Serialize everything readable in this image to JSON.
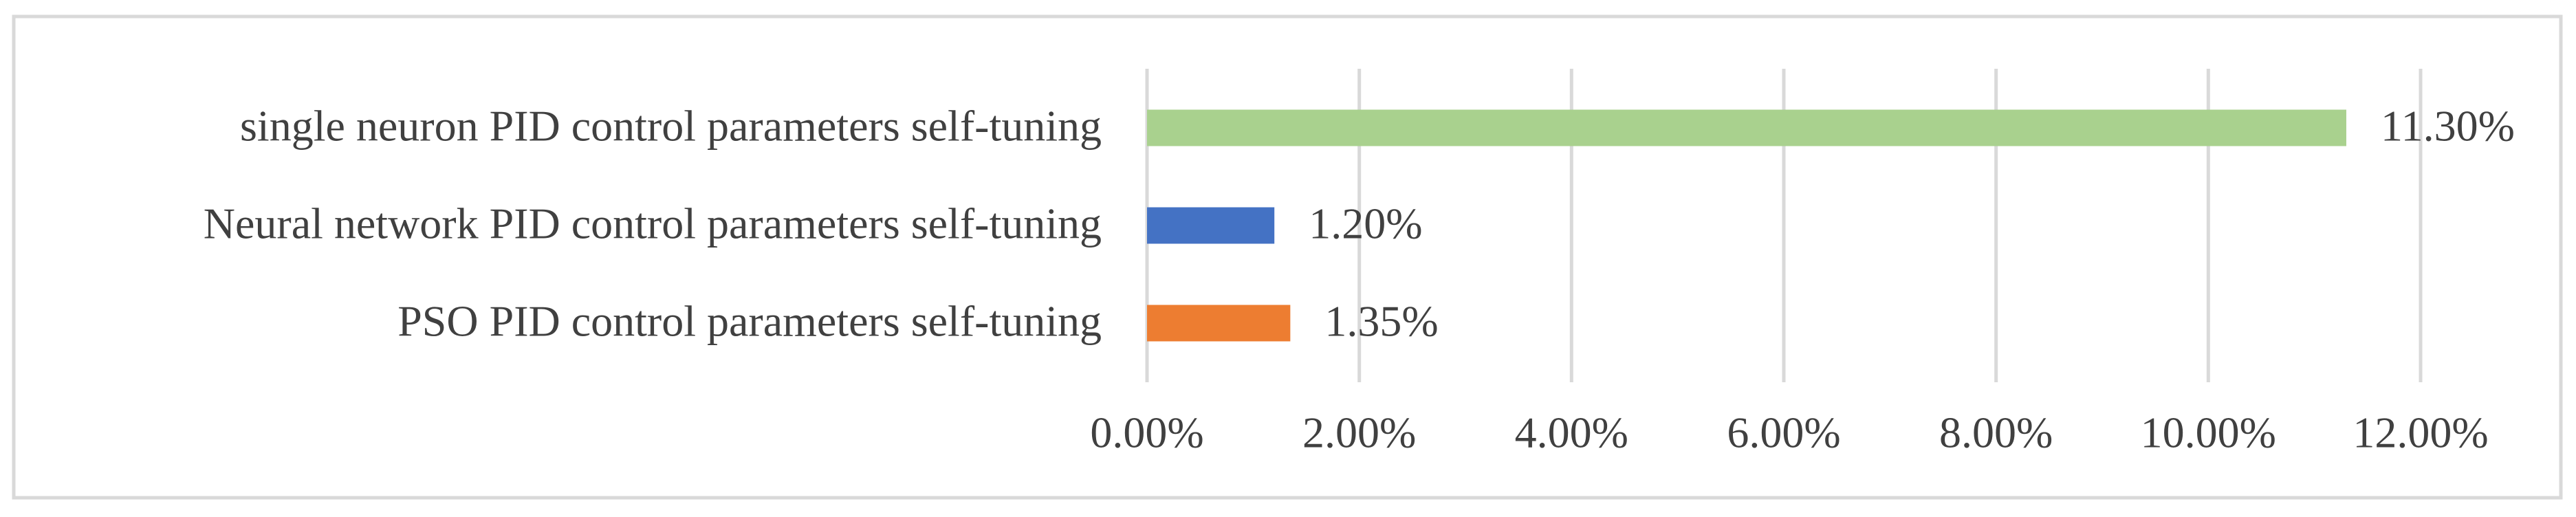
{
  "chart_data": {
    "type": "hbar",
    "categories": [
      "single neuron PID control parameters self-tuning",
      "Neural network PID control parameters self-tuning",
      "PSO PID control parameters self-tuning"
    ],
    "values": [
      11.3,
      1.2,
      1.35
    ],
    "value_labels": [
      "11.30%",
      "1.20%",
      "1.35%"
    ],
    "colors": [
      "#a9d18e",
      "#4472c4",
      "#ed7d31"
    ],
    "xlim": [
      0,
      12
    ],
    "xticks": [
      {
        "value": 0,
        "label": "0.00%"
      },
      {
        "value": 2,
        "label": "2.00%"
      },
      {
        "value": 4,
        "label": "4.00%"
      },
      {
        "value": 6,
        "label": "6.00%"
      },
      {
        "value": 8,
        "label": "8.00%"
      },
      {
        "value": 10,
        "label": "10.00%"
      },
      {
        "value": 12,
        "label": "12.00%"
      }
    ],
    "grid": true
  }
}
